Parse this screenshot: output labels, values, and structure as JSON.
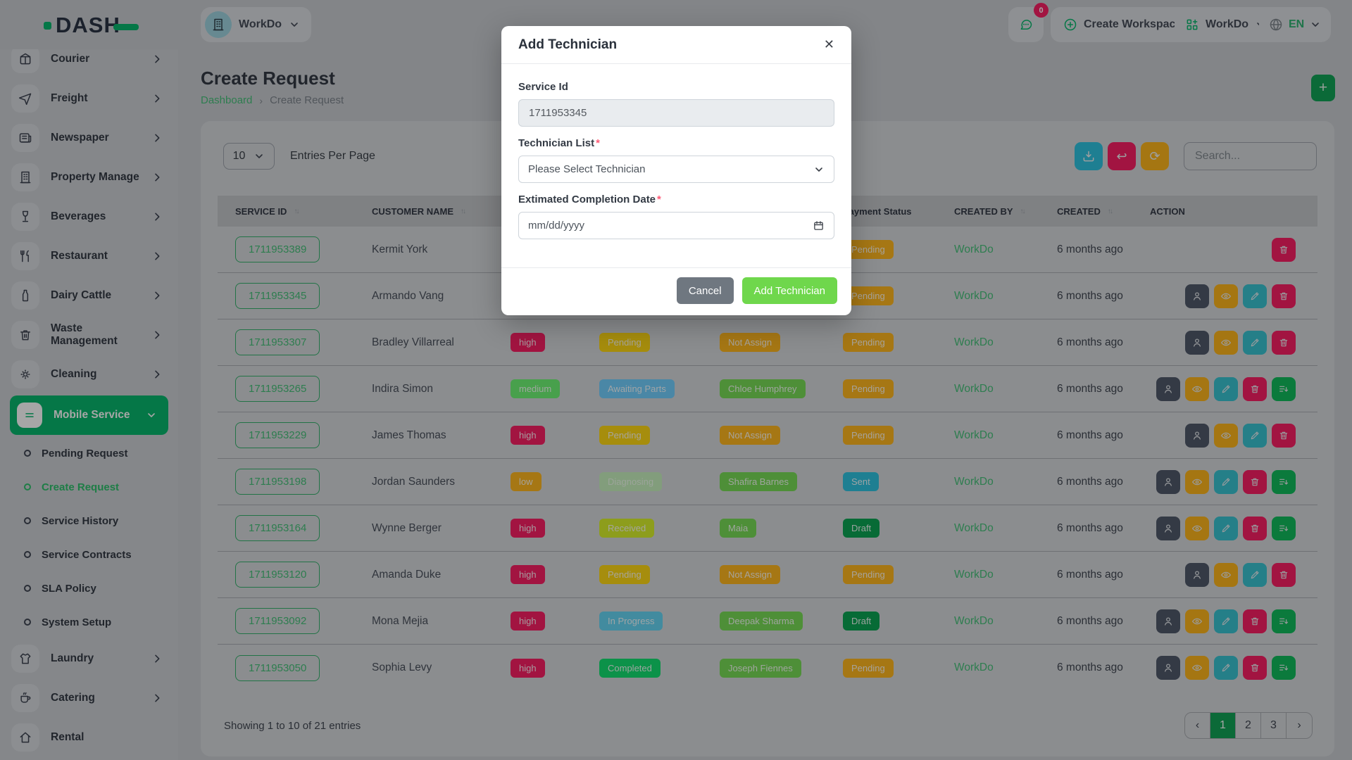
{
  "brand": {
    "name": "DASH",
    "accent": "#09B76D"
  },
  "topbar": {
    "workspace_label": "WorkDo",
    "chat_badge": "0",
    "create_workspace_label": "Create Workspace",
    "app_switcher_label": "WorkDo",
    "language_label": "EN"
  },
  "sidebar": {
    "items": [
      {
        "label": "Courier",
        "icon": "package",
        "chevron": true
      },
      {
        "label": "Freight",
        "icon": "plane",
        "chevron": true
      },
      {
        "label": "Newspaper",
        "icon": "newspaper",
        "chevron": true
      },
      {
        "label": "Property Manage",
        "icon": "building",
        "chevron": true
      },
      {
        "label": "Beverages",
        "icon": "glass",
        "chevron": true
      },
      {
        "label": "Restaurant",
        "icon": "utensils",
        "chevron": true
      },
      {
        "label": "Dairy Cattle",
        "icon": "bottle",
        "chevron": true
      },
      {
        "label": "Waste Management",
        "icon": "trash",
        "chevron": true
      },
      {
        "label": "Cleaning",
        "icon": "sparkle",
        "chevron": true
      },
      {
        "label": "Mobile Service",
        "icon": "menu",
        "chevron": true,
        "active": true,
        "expanded": true,
        "children": [
          {
            "label": "Pending Request"
          },
          {
            "label": "Create Request",
            "active": true
          },
          {
            "label": "Service History"
          },
          {
            "label": "Service Contracts"
          },
          {
            "label": "SLA Policy"
          },
          {
            "label": "System Setup"
          }
        ]
      },
      {
        "label": "Laundry",
        "icon": "shirt",
        "chevron": true
      },
      {
        "label": "Catering",
        "icon": "coffee",
        "chevron": true
      },
      {
        "label": "Rental",
        "icon": "home",
        "chevron": false
      }
    ]
  },
  "page": {
    "title": "Create Request",
    "breadcrumb": {
      "root": "Dashboard",
      "separator": "›",
      "current": "Create Request"
    },
    "add_button": "+"
  },
  "controls": {
    "page_size": "10",
    "entries_label": "Entries Per Page",
    "search_placeholder": "Search..."
  },
  "table": {
    "columns": [
      {
        "label": "SERVICE ID",
        "sort": true
      },
      {
        "label": "CUSTOMER NAME",
        "sort": true
      },
      {
        "label": "",
        "sort": false
      },
      {
        "label": "",
        "sort": false
      },
      {
        "label": "",
        "sort": false
      },
      {
        "label": "Payment Status",
        "sort": false
      },
      {
        "label": "CREATED BY",
        "sort": true
      },
      {
        "label": "CREATED",
        "sort": true
      },
      {
        "label": "ACTION",
        "sort": false
      }
    ],
    "sort_glyph": "↑↓",
    "rows": [
      {
        "id": "1711953389",
        "customer": "Kermit York",
        "priority": null,
        "status": null,
        "technician": null,
        "payment": "Pending",
        "created_by": "WorkDo",
        "created": "6 months ago",
        "actions": [
          "delete"
        ]
      },
      {
        "id": "1711953345",
        "customer": "Armando Vang",
        "priority": null,
        "status": null,
        "technician": null,
        "payment": "Pending",
        "created_by": "WorkDo",
        "created": "6 months ago",
        "actions": [
          "user",
          "eye",
          "edit",
          "delete"
        ]
      },
      {
        "id": "1711953307",
        "customer": "Bradley Villarreal",
        "priority": "high",
        "status": "Pending",
        "technician": "Not Assign",
        "payment": "Pending",
        "created_by": "WorkDo",
        "created": "6 months ago",
        "actions": [
          "user",
          "eye",
          "edit",
          "delete"
        ]
      },
      {
        "id": "1711953265",
        "customer": "Indira Simon",
        "priority": "medium",
        "status": "Awaiting Parts",
        "technician": "Chloe Humphrey",
        "payment": "Pending",
        "created_by": "WorkDo",
        "created": "6 months ago",
        "actions": [
          "user",
          "eye",
          "edit",
          "delete",
          "list"
        ]
      },
      {
        "id": "1711953229",
        "customer": "James Thomas",
        "priority": "high",
        "status": "Pending",
        "technician": "Not Assign",
        "payment": "Pending",
        "created_by": "WorkDo",
        "created": "6 months ago",
        "actions": [
          "user",
          "eye",
          "edit",
          "delete"
        ]
      },
      {
        "id": "1711953198",
        "customer": "Jordan Saunders",
        "priority": "low",
        "status": "Diagnosing",
        "technician": "Shafira Barnes",
        "payment": "Sent",
        "created_by": "WorkDo",
        "created": "6 months ago",
        "actions": [
          "user",
          "eye",
          "edit",
          "delete",
          "list"
        ]
      },
      {
        "id": "1711953164",
        "customer": "Wynne Berger",
        "priority": "high",
        "status": "Received",
        "technician": "Maia",
        "payment": "Draft",
        "created_by": "WorkDo",
        "created": "6 months ago",
        "actions": [
          "user",
          "eye",
          "edit",
          "delete",
          "list"
        ]
      },
      {
        "id": "1711953120",
        "customer": "Amanda Duke",
        "priority": "high",
        "status": "Pending",
        "technician": "Not Assign",
        "payment": "Pending",
        "created_by": "WorkDo",
        "created": "6 months ago",
        "actions": [
          "user",
          "eye",
          "edit",
          "delete"
        ]
      },
      {
        "id": "1711953092",
        "customer": "Mona Mejia",
        "priority": "high",
        "status": "In Progress",
        "technician": "Deepak Sharma",
        "payment": "Draft",
        "created_by": "WorkDo",
        "created": "6 months ago",
        "actions": [
          "user",
          "eye",
          "edit",
          "delete",
          "list"
        ]
      },
      {
        "id": "1711953050",
        "customer": "Sophia Levy",
        "priority": "high",
        "status": "Completed",
        "technician": "Joseph Fiennes",
        "payment": "Pending",
        "created_by": "WorkDo",
        "created": "6 months ago",
        "actions": [
          "user",
          "eye",
          "edit",
          "delete",
          "list"
        ]
      }
    ]
  },
  "pagination": {
    "summary": "Showing 1 to 10 of 21 entries",
    "prev": "‹",
    "pages": [
      "1",
      "2",
      "3"
    ],
    "active": "1",
    "next": "›"
  },
  "modal": {
    "title": "Add Technician",
    "close": "✕",
    "service_id": {
      "label": "Service Id",
      "value": "1711953345"
    },
    "technician": {
      "label": "Technician List",
      "required": "*",
      "placeholder": "Please Select Technician"
    },
    "completion_date": {
      "label": "Extimated Completion Date",
      "required": "*",
      "placeholder": "mm/dd/yyyy"
    },
    "cancel_label": "Cancel",
    "submit_label": "Add Technician"
  },
  "colors": {
    "priority": {
      "high": {
        "bg": "#F91F64"
      },
      "medium": {
        "bg": "#6FF675"
      },
      "low": {
        "bg": "#FFB71F"
      }
    },
    "status": {
      "Pending": {
        "bg": "#FFD914"
      },
      "Awaiting Parts": {
        "bg": "#72D0FF"
      },
      "Diagnosing": {
        "bg": "#C8F2BF",
        "fg": "#EFFCEC"
      },
      "Received": {
        "bg": "#D9F22B"
      },
      "In Progress": {
        "bg": "#66D6F5"
      },
      "Completed": {
        "bg": "#13E070"
      }
    },
    "technician_assigned": {
      "bg": "#78DC56"
    },
    "technician_not_assigned": {
      "bg": "#FFB71F"
    },
    "payment": {
      "Pending": {
        "bg": "#FFB71F"
      },
      "Sent": {
        "bg": "#2EC3E1"
      },
      "Draft": {
        "bg": "#0CA553"
      }
    },
    "actions": {
      "user": "#50596B",
      "eye": "#FEB61C",
      "edit": "#3AC3D2",
      "delete": "#F91F64",
      "list": "#11BC5C"
    },
    "toolbar": {
      "download": "#2EC3E1",
      "undo": "#F91F64",
      "refresh": "#FEB61C"
    }
  }
}
